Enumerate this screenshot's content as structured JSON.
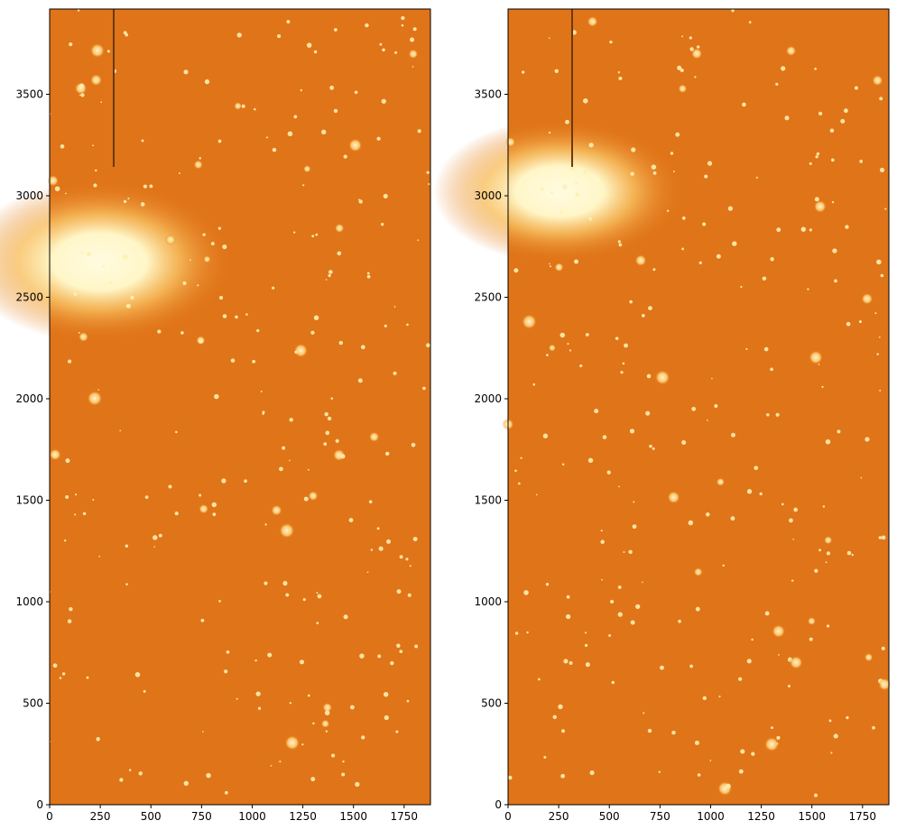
{
  "chart_data": [
    {
      "type": "image",
      "xlim": [
        0,
        1880
      ],
      "ylim": [
        0,
        3920
      ],
      "xticks": [
        0,
        250,
        500,
        750,
        1000,
        1250,
        1500,
        1750
      ],
      "yticks": [
        0,
        500,
        1000,
        1500,
        2000,
        2500,
        3000,
        3500
      ]
    },
    {
      "type": "image",
      "xlim": [
        0,
        1880
      ],
      "ylim": [
        0,
        3920
      ],
      "xticks": [
        0,
        250,
        500,
        750,
        1000,
        1250,
        1500,
        1750
      ],
      "yticks": [
        0,
        500,
        1000,
        1500,
        2000,
        2500,
        3000,
        3500
      ]
    }
  ]
}
